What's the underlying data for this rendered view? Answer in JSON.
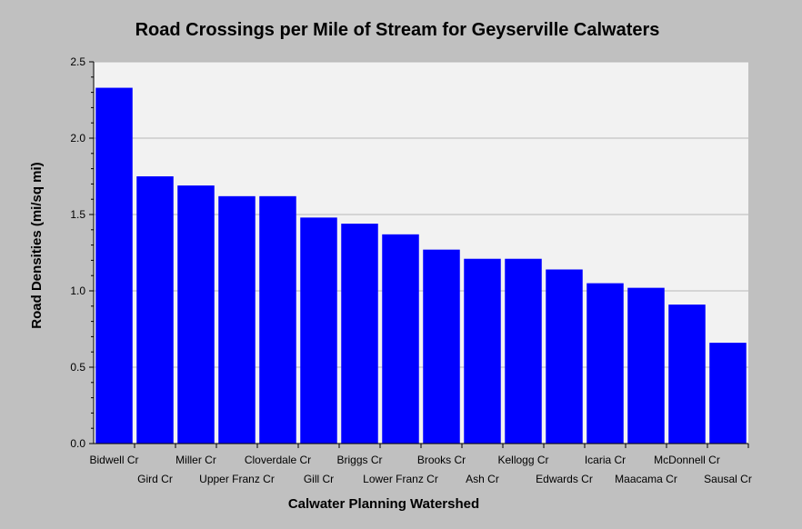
{
  "chart_data": {
    "type": "bar",
    "title": "Road Crossings per Mile of Stream for Geyserville Calwaters",
    "xlabel": "Calwater Planning Watershed",
    "ylabel": "Road Densities (mi/sq mi)",
    "ylim": [
      0,
      2.5
    ],
    "yticks": [
      "0.0",
      "0.5",
      "1.0",
      "1.5",
      "2.0",
      "2.5"
    ],
    "grid": true,
    "categories": [
      "Bidwell Cr",
      "Gird Cr",
      "Miller Cr",
      "Upper Franz Cr",
      "Cloverdale Cr",
      "Gill Cr",
      "Briggs Cr",
      "Lower Franz Cr",
      "Brooks Cr",
      "Ash Cr",
      "Kellogg Cr",
      "Edwards Cr",
      "Icaria Cr",
      "Maacama Cr",
      "McDonnell Cr",
      "Sausal Cr"
    ],
    "values": [
      2.33,
      1.75,
      1.69,
      1.62,
      1.62,
      1.48,
      1.44,
      1.37,
      1.27,
      1.21,
      1.21,
      1.14,
      1.05,
      1.02,
      0.91,
      0.66
    ],
    "colors": {
      "bar": "#0000ff",
      "plot_bg": "#f2f2f2",
      "frame_bg": "#c0c0c0",
      "grid": "#b8b8b8"
    }
  }
}
